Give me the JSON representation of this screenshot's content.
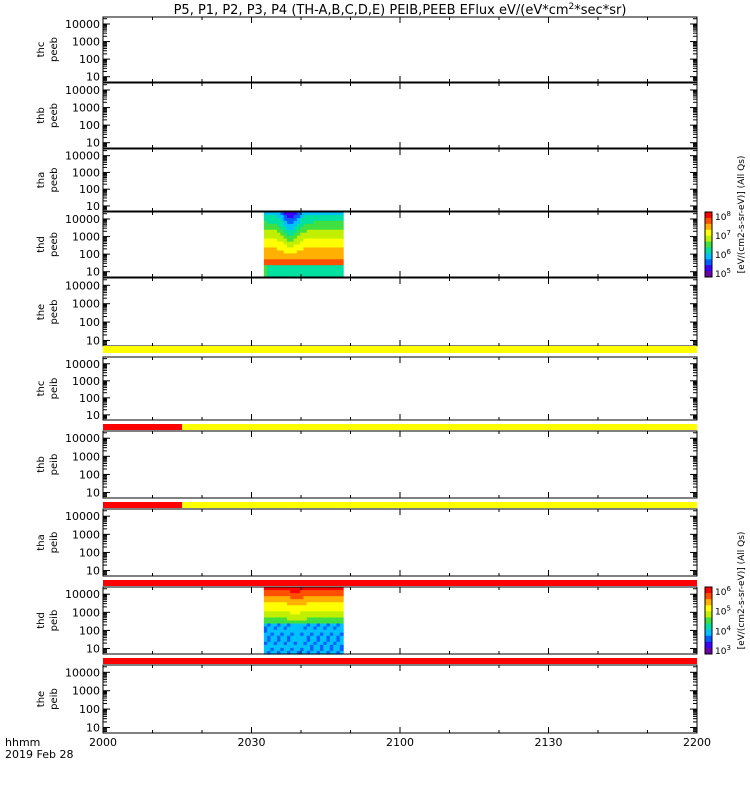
{
  "chart_data": {
    "type": "heatmap",
    "title_parts": [
      "P5, P1, P2, P3, P4 (TH-A,B,C,D,E) PEIB,PEEB EFlux eV/(eV*cm",
      "2",
      "*sec*sr)"
    ],
    "x_axis": {
      "ticks": [
        "2000",
        "2030",
        "2100",
        "2130",
        "2200"
      ],
      "tick_minutes": [
        0,
        30,
        60,
        90,
        120
      ],
      "xlim_minutes": [
        0,
        120
      ],
      "label_line1": "hhmm",
      "label_line2": "2019 Feb 28"
    },
    "y_axis": {
      "scale": "log",
      "ylim": [
        5,
        25000
      ],
      "ticks": [
        10,
        100,
        1000,
        10000
      ],
      "tick_labels": [
        "10",
        "100",
        "1000",
        "10000"
      ]
    },
    "panels": [
      {
        "probe": "thc",
        "species": "peeb",
        "data_minutes": null
      },
      {
        "probe": "thb",
        "species": "peeb",
        "data_minutes": null
      },
      {
        "probe": "tha",
        "species": "peeb",
        "data_minutes": null
      },
      {
        "probe": "thd",
        "species": "peeb",
        "data_minutes": [
          32.5,
          48.5
        ]
      },
      {
        "probe": "the",
        "species": "peeb",
        "data_minutes": null
      },
      {
        "probe": "thc",
        "species": "peib",
        "data_minutes": null
      },
      {
        "probe": "thb",
        "species": "peib",
        "data_minutes": null
      },
      {
        "probe": "tha",
        "species": "peib",
        "data_minutes": null
      },
      {
        "probe": "thd",
        "species": "peib",
        "data_minutes": [
          32.5,
          48.5
        ]
      },
      {
        "probe": "the",
        "species": "peib",
        "data_minutes": null
      }
    ],
    "status_bars": [
      {
        "after_panel": 5,
        "segments": [
          {
            "from": 0,
            "to": 120,
            "color": "#ffff00"
          }
        ]
      },
      {
        "after_panel": 6,
        "segments": [
          {
            "from": 0,
            "to": 16,
            "color": "#ff0000"
          },
          {
            "from": 16,
            "to": 120,
            "color": "#ffff00"
          }
        ]
      },
      {
        "after_panel": 7,
        "segments": [
          {
            "from": 0,
            "to": 16,
            "color": "#ff0000"
          },
          {
            "from": 16,
            "to": 120,
            "color": "#ffff00"
          }
        ]
      },
      {
        "after_panel": 8,
        "segments": [
          {
            "from": 0,
            "to": 120,
            "color": "#ff0000"
          }
        ]
      },
      {
        "after_panel": 9,
        "segments": [
          {
            "from": 0,
            "to": 120,
            "color": "#ff0000"
          }
        ]
      }
    ],
    "colorbars": [
      {
        "for_panel": 4,
        "label": "[eV/(cm2-s-sr-eV)] (All Qs)",
        "ticks": [
          "10",
          "10",
          "10",
          "10"
        ],
        "exponents": [
          "8",
          "7",
          "6",
          "5"
        ]
      },
      {
        "for_panel": 9,
        "label": "[eV/(cm2-s-sr-eV)] (All Qs)",
        "ticks": [
          "10",
          "10",
          "10",
          "10"
        ],
        "exponents": [
          "6",
          "5",
          "4",
          "3"
        ]
      }
    ],
    "colormap": [
      "#6a00a8",
      "#3b00ff",
      "#0060ff",
      "#00c0ff",
      "#00e0a0",
      "#40e040",
      "#c0f000",
      "#ffff00",
      "#ffb000",
      "#ff5000",
      "#ff0000"
    ],
    "grid": false
  }
}
